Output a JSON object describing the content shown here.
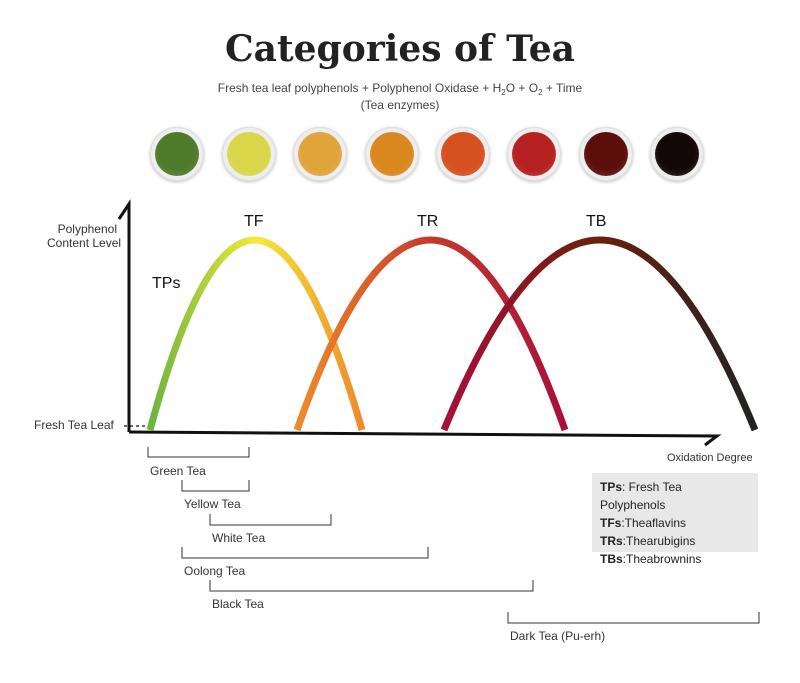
{
  "title": "Categories of Tea",
  "formula": {
    "part1": "Fresh tea leaf polyphenols + Polyphenol Oxidase + H",
    "h2o_sub": "2",
    "part2": "O + O",
    "o2_sub": "2",
    "part3": " + Time",
    "note": "(Tea enzymes)"
  },
  "cups": [
    {
      "name": "cup-1",
      "color": "#4f7a2a"
    },
    {
      "name": "cup-2",
      "color": "#d9d64a"
    },
    {
      "name": "cup-3",
      "color": "#e0a53a"
    },
    {
      "name": "cup-4",
      "color": "#d9871f"
    },
    {
      "name": "cup-5",
      "color": "#d5511f"
    },
    {
      "name": "cup-6",
      "color": "#b52020"
    },
    {
      "name": "cup-7",
      "color": "#5a0f0a"
    },
    {
      "name": "cup-8",
      "color": "#120808"
    }
  ],
  "axis": {
    "y_label_line1": "Polyphenol",
    "y_label_line2": "Content Level",
    "x_label": "Oxidation Degree",
    "baseline_label": "Fresh Tea Leaf"
  },
  "curves": {
    "tps": "TPs",
    "tf": "TF",
    "tr": "TR",
    "tb": "TB"
  },
  "ranges": [
    {
      "name": "green",
      "label": "Green Tea"
    },
    {
      "name": "yellow",
      "label": "Yellow Tea"
    },
    {
      "name": "white",
      "label": "White Tea"
    },
    {
      "name": "oolong",
      "label": "Oolong Tea"
    },
    {
      "name": "black",
      "label": "Black Tea"
    },
    {
      "name": "dark",
      "label": "Dark Tea (Pu-erh)"
    }
  ],
  "legend": [
    {
      "abbr": "TPs",
      "full": ": Fresh Tea Polyphenols"
    },
    {
      "abbr": "TFs",
      "full": ":Theaflavins"
    },
    {
      "abbr": "TRs",
      "full": ":Thearubigins"
    },
    {
      "abbr": "TBs",
      "full": ":Theabrownins"
    }
  ]
}
